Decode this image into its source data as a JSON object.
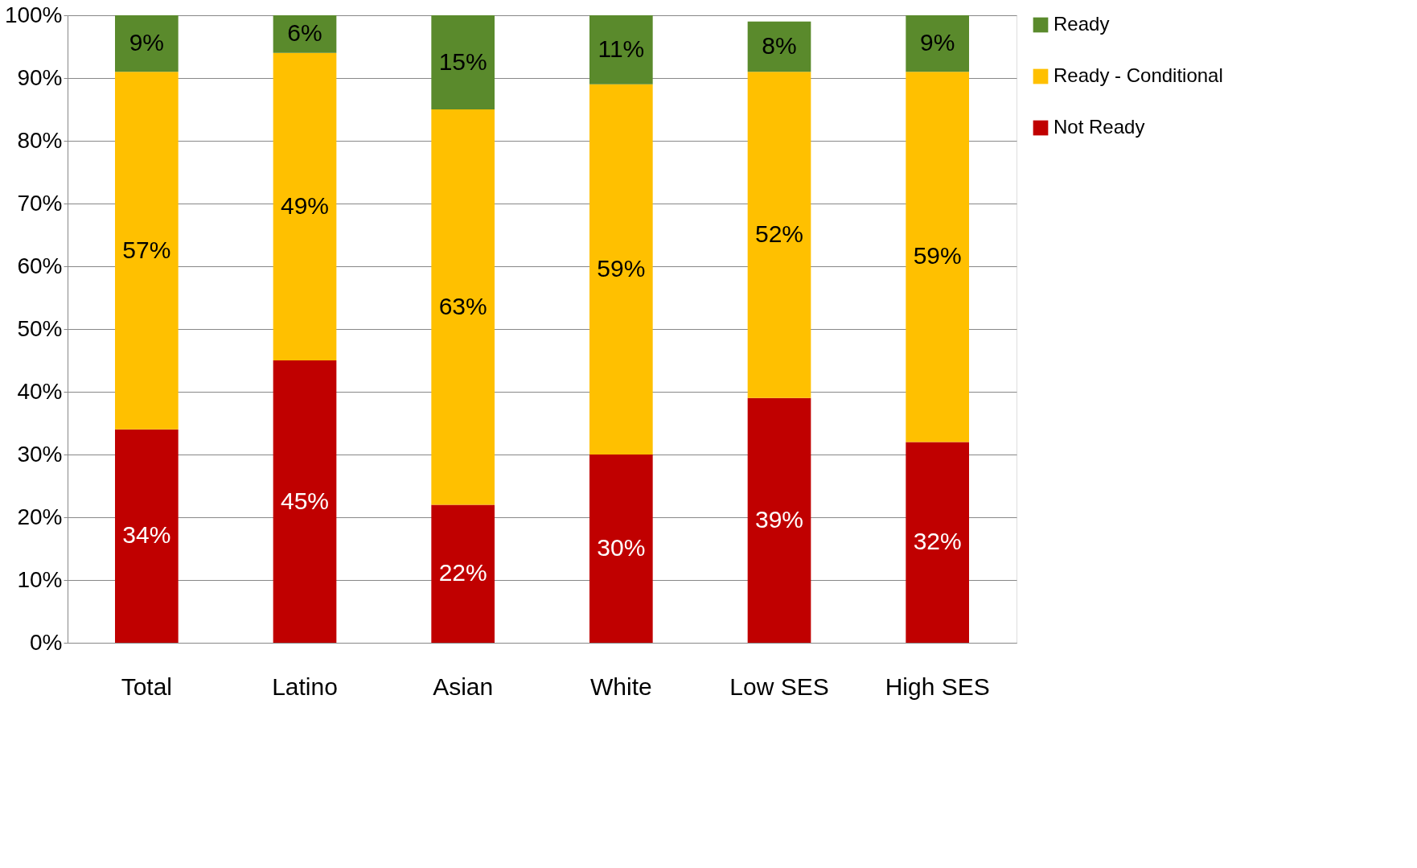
{
  "chart_data": {
    "type": "bar",
    "stacked": true,
    "categories": [
      "Total",
      "Latino",
      "Asian",
      "White",
      "Low SES",
      "High SES"
    ],
    "series": [
      {
        "name": "Not Ready",
        "color": "#c00000",
        "values": [
          34,
          45,
          22,
          30,
          39,
          32
        ],
        "value_labels": [
          "34%",
          "45%",
          "22%",
          "30%",
          "39%",
          "32%"
        ]
      },
      {
        "name": "Ready - Conditional",
        "color": "#ffc000",
        "values": [
          57,
          49,
          63,
          59,
          52,
          59
        ],
        "value_labels": [
          "57%",
          "49%",
          "63%",
          "59%",
          "52%",
          "59%"
        ]
      },
      {
        "name": "Ready",
        "color": "#5a8a2c",
        "values": [
          9,
          6,
          15,
          11,
          8,
          9
        ],
        "value_labels": [
          "9%",
          "6%",
          "15%",
          "11%",
          "8%",
          "9%"
        ]
      }
    ],
    "ylim": [
      0,
      100
    ],
    "yticks": [
      {
        "value": 0,
        "label": "0%"
      },
      {
        "value": 10,
        "label": "10%"
      },
      {
        "value": 20,
        "label": "20%"
      },
      {
        "value": 30,
        "label": "30%"
      },
      {
        "value": 40,
        "label": "40%"
      },
      {
        "value": 50,
        "label": "50%"
      },
      {
        "value": 60,
        "label": "60%"
      },
      {
        "value": 70,
        "label": "70%"
      },
      {
        "value": 80,
        "label": "80%"
      },
      {
        "value": 90,
        "label": "90%"
      },
      {
        "value": 100,
        "label": "100%"
      }
    ],
    "grid": "y",
    "legend": "right"
  }
}
